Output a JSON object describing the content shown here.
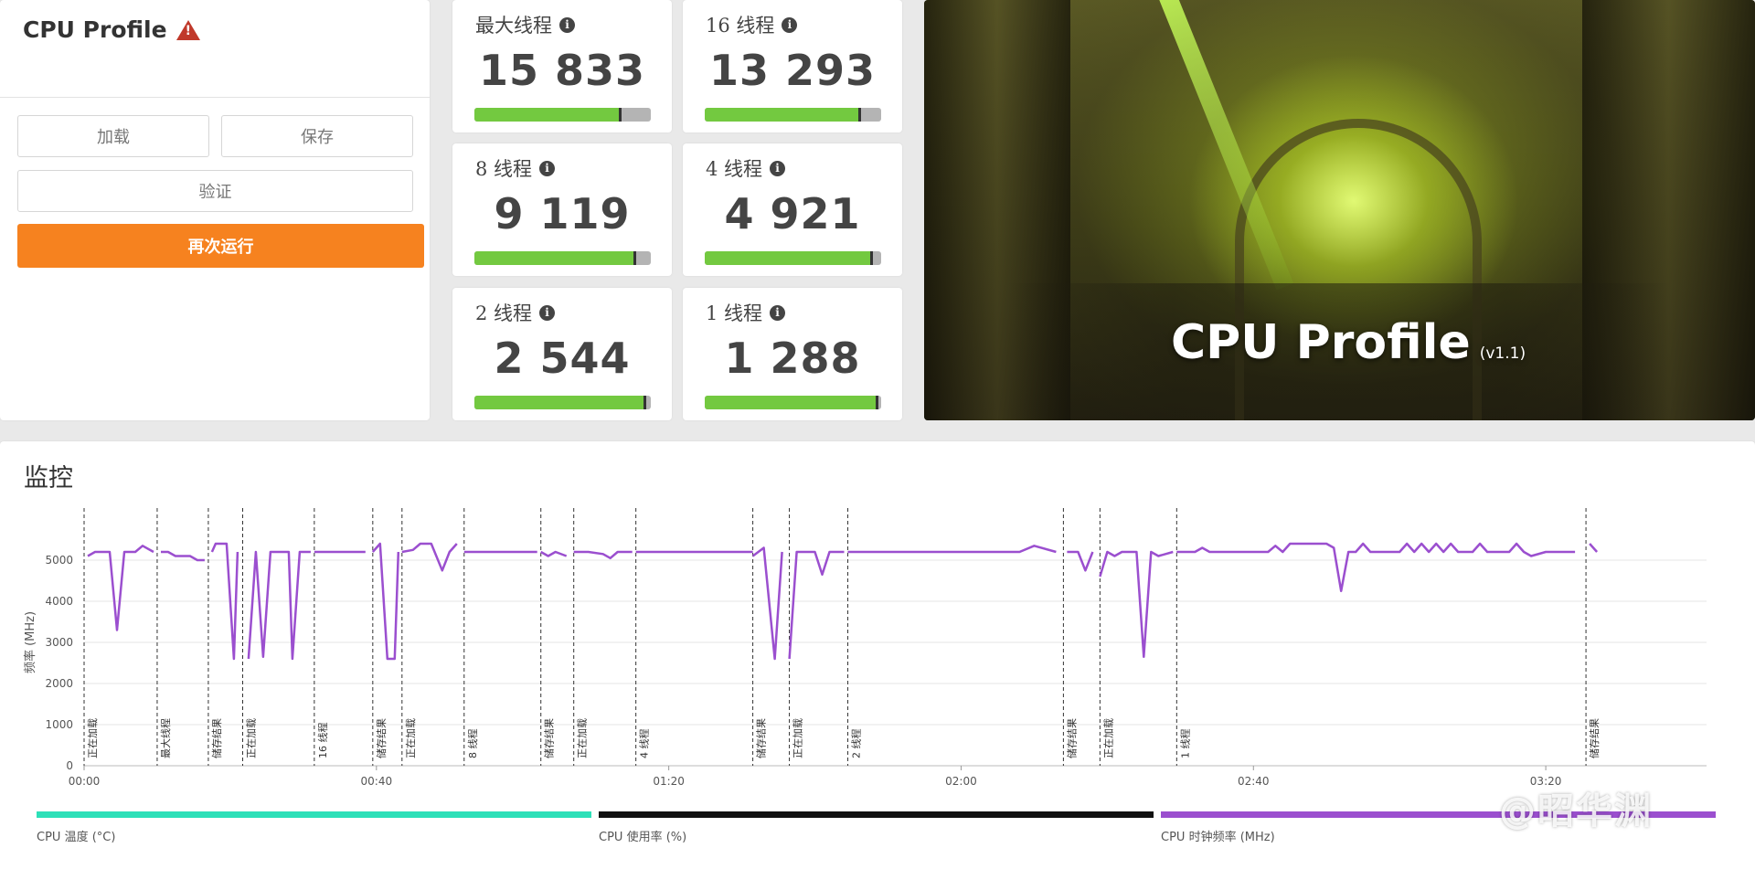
{
  "control": {
    "title": "CPU Profile",
    "warning_icon": "warning-triangle-icon",
    "load_label": "加载",
    "save_label": "保存",
    "verify_label": "验证",
    "run_again_label": "再次运行"
  },
  "scores": [
    {
      "label": "最大线程",
      "value": "15 833",
      "bar_level": 0.83,
      "accent": "#73c940"
    },
    {
      "label": "16 线程",
      "value": "13 293",
      "bar_level": 0.88,
      "accent": "#73c940"
    },
    {
      "label": "8 线程",
      "value": "9 119",
      "bar_level": 0.91,
      "accent": "#73c940"
    },
    {
      "label": "4 线程",
      "value": "4 921",
      "bar_level": 0.95,
      "accent": "#73c940"
    },
    {
      "label": "2 线程",
      "value": "2 544",
      "bar_level": 0.97,
      "accent": "#73c940"
    },
    {
      "label": "1 线程",
      "value": "1 288",
      "bar_level": 0.98,
      "accent": "#73c940"
    }
  ],
  "info_icon_glyph": "i",
  "hero": {
    "title": "CPU Profile",
    "version": "(v1.1)"
  },
  "monitor": {
    "title": "监控"
  },
  "chart_data": {
    "type": "line",
    "ylabel": "频率 (MHz)",
    "ylim": [
      0,
      6000
    ],
    "yticks": [
      0,
      1000,
      2000,
      3000,
      4000,
      5000
    ],
    "xlim": [
      0,
      222
    ],
    "xticks": [
      {
        "t": 0,
        "label": "00:00"
      },
      {
        "t": 40,
        "label": "00:40"
      },
      {
        "t": 80,
        "label": "01:20"
      },
      {
        "t": 120,
        "label": "02:00"
      },
      {
        "t": 160,
        "label": "02:40"
      },
      {
        "t": 200,
        "label": "03:20"
      }
    ],
    "grid": true,
    "markers": [
      {
        "t": 0,
        "label": "正在加载"
      },
      {
        "t": 10,
        "label": "最大线程"
      },
      {
        "t": 17,
        "label": "储存结果"
      },
      {
        "t": 21.7,
        "label": "正在加载"
      },
      {
        "t": 31.5,
        "label": "16 线程"
      },
      {
        "t": 39.5,
        "label": "储存结果"
      },
      {
        "t": 43.5,
        "label": "正在加载"
      },
      {
        "t": 52,
        "label": "8 线程"
      },
      {
        "t": 62.5,
        "label": "储存结果"
      },
      {
        "t": 67,
        "label": "正在加载"
      },
      {
        "t": 75.5,
        "label": "4 线程"
      },
      {
        "t": 91.5,
        "label": "储存结果"
      },
      {
        "t": 96.5,
        "label": "正在加载"
      },
      {
        "t": 104.5,
        "label": "2 线程"
      },
      {
        "t": 134,
        "label": "储存结果"
      },
      {
        "t": 139,
        "label": "正在加载"
      },
      {
        "t": 149.5,
        "label": "1 线程"
      },
      {
        "t": 205.5,
        "label": "储存结果"
      }
    ],
    "series": [
      {
        "name": "CPU 时钟频率 (MHz)",
        "color": "#9b4fcf",
        "segments": [
          [
            [
              0.5,
              5100
            ],
            [
              1.5,
              5200
            ],
            [
              3.5,
              5200
            ],
            [
              4.5,
              3300
            ],
            [
              5.5,
              5200
            ],
            [
              7,
              5200
            ],
            [
              8,
              5350
            ],
            [
              9.5,
              5200
            ]
          ],
          [
            [
              10.5,
              5200
            ],
            [
              11.5,
              5200
            ],
            [
              12.5,
              5100
            ],
            [
              14.5,
              5100
            ],
            [
              15.5,
              5000
            ],
            [
              16.5,
              5000
            ]
          ],
          [
            [
              17.5,
              5200
            ],
            [
              18,
              5400
            ],
            [
              19.5,
              5400
            ],
            [
              20.5,
              2600
            ],
            [
              21,
              5200
            ]
          ],
          [
            [
              22.5,
              2600
            ],
            [
              23.5,
              5200
            ],
            [
              24.5,
              2650
            ],
            [
              25.5,
              5200
            ],
            [
              27,
              5200
            ],
            [
              28,
              5200
            ],
            [
              28.5,
              2600
            ],
            [
              29.5,
              5200
            ],
            [
              31,
              5200
            ]
          ],
          [
            [
              31.5,
              5200
            ],
            [
              33,
              5200
            ],
            [
              37,
              5200
            ],
            [
              38.5,
              5200
            ]
          ],
          [
            [
              39.5,
              5200
            ],
            [
              40.5,
              5400
            ],
            [
              41.5,
              2600
            ],
            [
              42.5,
              2600
            ],
            [
              43,
              5200
            ]
          ],
          [
            [
              43.5,
              5200
            ],
            [
              45,
              5250
            ],
            [
              46,
              5400
            ],
            [
              47.5,
              5400
            ],
            [
              49,
              4750
            ],
            [
              50,
              5200
            ],
            [
              51,
              5400
            ]
          ],
          [
            [
              52,
              5200
            ],
            [
              56,
              5200
            ],
            [
              62,
              5200
            ]
          ],
          [
            [
              62.5,
              5200
            ],
            [
              63.5,
              5100
            ],
            [
              64.5,
              5200
            ],
            [
              66,
              5100
            ]
          ],
          [
            [
              67,
              5200
            ],
            [
              69,
              5200
            ],
            [
              71,
              5150
            ],
            [
              72,
              5050
            ],
            [
              73,
              5200
            ],
            [
              75,
              5200
            ]
          ],
          [
            [
              75.5,
              5200
            ],
            [
              80,
              5200
            ],
            [
              90,
              5200
            ],
            [
              91.5,
              5200
            ]
          ],
          [
            [
              91.5,
              5100
            ],
            [
              93,
              5300
            ],
            [
              94.5,
              2600
            ],
            [
              95.5,
              5200
            ]
          ],
          [
            [
              96.5,
              2600
            ],
            [
              97.5,
              5200
            ],
            [
              100,
              5200
            ],
            [
              101,
              4650
            ],
            [
              102,
              5200
            ],
            [
              104,
              5200
            ]
          ],
          [
            [
              104.5,
              5200
            ],
            [
              110,
              5200
            ],
            [
              120,
              5200
            ],
            [
              128,
              5200
            ],
            [
              130,
              5350
            ],
            [
              133,
              5200
            ]
          ],
          [
            [
              134.5,
              5200
            ],
            [
              136,
              5200
            ],
            [
              137,
              4750
            ],
            [
              138,
              5200
            ]
          ],
          [
            [
              139,
              4600
            ],
            [
              140,
              5200
            ],
            [
              141,
              5100
            ],
            [
              142,
              5200
            ],
            [
              144,
              5200
            ],
            [
              145,
              2650
            ],
            [
              146,
              5200
            ],
            [
              147,
              5100
            ],
            [
              149,
              5200
            ]
          ],
          [
            [
              149.5,
              5200
            ],
            [
              152,
              5200
            ],
            [
              153,
              5300
            ],
            [
              154,
              5200
            ],
            [
              160,
              5200
            ],
            [
              162,
              5200
            ],
            [
              163,
              5350
            ],
            [
              164,
              5200
            ],
            [
              165,
              5400
            ],
            [
              170,
              5400
            ],
            [
              171,
              5300
            ],
            [
              172,
              4250
            ],
            [
              173,
              5200
            ],
            [
              174,
              5200
            ],
            [
              175,
              5400
            ],
            [
              176,
              5200
            ],
            [
              180,
              5200
            ],
            [
              181,
              5400
            ],
            [
              182,
              5200
            ],
            [
              183,
              5400
            ],
            [
              184,
              5200
            ],
            [
              185,
              5400
            ],
            [
              186,
              5200
            ],
            [
              187,
              5400
            ],
            [
              188,
              5200
            ],
            [
              190,
              5200
            ],
            [
              191,
              5400
            ],
            [
              192,
              5200
            ],
            [
              195,
              5200
            ],
            [
              196,
              5400
            ],
            [
              197,
              5200
            ],
            [
              198,
              5100
            ],
            [
              200,
              5200
            ],
            [
              204,
              5200
            ]
          ],
          [
            [
              206,
              5400
            ],
            [
              207,
              5200
            ]
          ]
        ]
      }
    ],
    "legend": [
      {
        "label": "CPU 温度 (°C)",
        "color": "#2de0b8"
      },
      {
        "label": "CPU 使用率 (%)",
        "color": "#111111"
      },
      {
        "label": "CPU 时钟频率 (MHz)",
        "color": "#9b4fcf"
      }
    ]
  },
  "watermark": "@昭华渊"
}
